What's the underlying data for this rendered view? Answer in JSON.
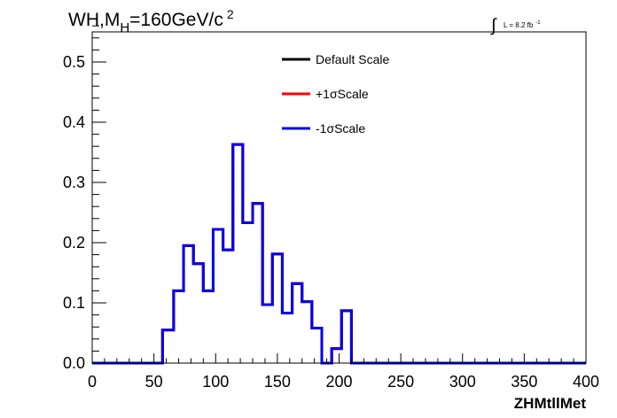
{
  "chart_data": {
    "type": "step-histogram",
    "title_main": "WH,M",
    "title_sub": "H",
    "title_rest": "=160GeV/c",
    "title_sup": "2",
    "lumi_symbol": "∫",
    "lumi_label": "L = 8.2 fb",
    "lumi_sup": "-1",
    "xlabel": "ZHMtllMet",
    "xlim": [
      0,
      400
    ],
    "ylim": [
      0,
      0.55
    ],
    "xticks": [
      "0",
      "50",
      "100",
      "150",
      "200",
      "250",
      "300",
      "350",
      "400"
    ],
    "yticks": [
      "0.0",
      "0.1",
      "0.2",
      "0.3",
      "0.4",
      "0.5"
    ],
    "bin_edges": [
      0,
      10,
      20,
      30,
      40,
      50,
      57,
      66,
      74,
      82,
      90,
      98,
      106,
      114,
      122,
      130,
      138,
      146,
      154,
      162,
      170,
      178,
      186,
      194,
      202,
      210,
      220,
      400
    ],
    "legend": [
      {
        "label": "Default Scale",
        "color": "#000000"
      },
      {
        "label": "+1σScale",
        "color": "#ff0000"
      },
      {
        "label": "-1σScale",
        "color": "#0000ee"
      }
    ],
    "series": [
      {
        "name": "Default Scale",
        "color": "#000000",
        "values": [
          0,
          0,
          0,
          0,
          0,
          0,
          0.055,
          0.12,
          0.195,
          0.165,
          0.12,
          0.222,
          0.188,
          0.363,
          0.233,
          0.265,
          0.097,
          0.181,
          0.083,
          0.132,
          0.102,
          0.058,
          0,
          0.024,
          0.087,
          0,
          0
        ]
      },
      {
        "name": "+1σScale",
        "color": "#ff0000",
        "values": [
          0,
          0,
          0,
          0,
          0,
          0,
          0.055,
          0.12,
          0.195,
          0.165,
          0.12,
          0.222,
          0.188,
          0.363,
          0.233,
          0.265,
          0.097,
          0.181,
          0.083,
          0.132,
          0.102,
          0.058,
          0,
          0.024,
          0.087,
          0,
          0
        ]
      },
      {
        "name": "-1σScale",
        "color": "#0000ee",
        "values": [
          0,
          0,
          0,
          0,
          0,
          0,
          0.055,
          0.12,
          0.195,
          0.165,
          0.12,
          0.222,
          0.188,
          0.363,
          0.233,
          0.265,
          0.097,
          0.181,
          0.083,
          0.132,
          0.102,
          0.058,
          0,
          0.024,
          0.087,
          0,
          0
        ]
      }
    ]
  }
}
